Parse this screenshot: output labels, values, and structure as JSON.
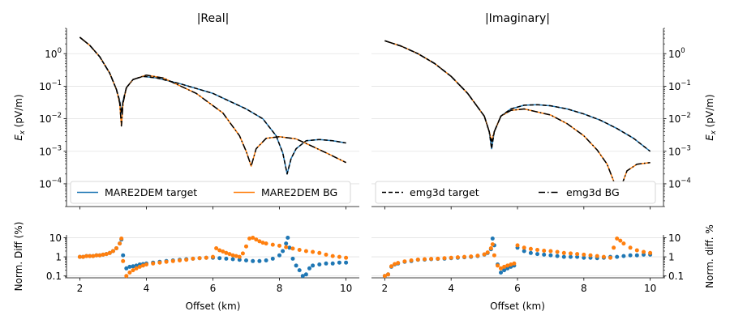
{
  "chart_data": [
    {
      "type": "line",
      "title": "|Real|",
      "ylabel": "E_x (pV/m)",
      "yscale": "log",
      "ylim": [
        2e-05,
        6
      ],
      "xlim": [
        1.6,
        10.4
      ],
      "yticks": [
        {
          "v": 1,
          "e": "0"
        },
        {
          "v": 0.1,
          "e": "−1"
        },
        {
          "v": 0.01,
          "e": "−2"
        },
        {
          "v": 0.001,
          "e": "−3"
        },
        {
          "v": 0.0001,
          "e": "−4"
        }
      ],
      "grid": true,
      "legend": {
        "position": "lower-left",
        "entries": [
          "MARE2DEM target",
          "MARE2DEM BG"
        ]
      },
      "series": [
        {
          "name": "MARE2DEM target",
          "color": "#1f77b4",
          "style": "solid",
          "x": [
            2.0,
            2.3,
            2.6,
            2.9,
            3.1,
            3.2,
            3.25,
            3.3,
            3.4,
            3.6,
            3.9,
            4.3,
            5.0,
            6.0,
            7.0,
            7.5,
            7.9,
            8.1,
            8.23,
            8.35,
            8.5,
            8.8,
            9.2,
            9.6,
            10.0
          ],
          "y": [
            3.2,
            1.8,
            0.8,
            0.25,
            0.08,
            0.035,
            0.015,
            0.035,
            0.09,
            0.16,
            0.2,
            0.18,
            0.12,
            0.06,
            0.02,
            0.01,
            0.003,
            0.0009,
            0.0002,
            0.0006,
            0.0012,
            0.0021,
            0.0023,
            0.0021,
            0.0018
          ]
        },
        {
          "name": "MARE2DEM BG",
          "color": "#ff7f0e",
          "style": "solid",
          "x": [
            2.0,
            2.3,
            2.6,
            2.9,
            3.1,
            3.2,
            3.25,
            3.3,
            3.4,
            3.6,
            4.0,
            4.5,
            5.5,
            6.3,
            6.8,
            7.0,
            7.1,
            7.15,
            7.3,
            7.6,
            8.0,
            8.5,
            9.0,
            9.5,
            10.0
          ],
          "y": [
            3.2,
            1.8,
            0.8,
            0.25,
            0.08,
            0.03,
            0.006,
            0.03,
            0.09,
            0.16,
            0.22,
            0.18,
            0.06,
            0.015,
            0.003,
            0.001,
            0.0005,
            0.00035,
            0.0012,
            0.0025,
            0.0028,
            0.0024,
            0.0014,
            0.0008,
            0.00045
          ]
        },
        {
          "name": "emg3d target",
          "color": "#000000",
          "style": "dashed",
          "x": [
            2.0,
            2.3,
            2.6,
            2.9,
            3.1,
            3.2,
            3.25,
            3.3,
            3.4,
            3.6,
            3.9,
            4.3,
            5.0,
            6.0,
            7.0,
            7.5,
            7.9,
            8.1,
            8.23,
            8.35,
            8.5,
            8.8,
            9.2,
            9.6,
            10.0
          ],
          "y": [
            3.2,
            1.8,
            0.8,
            0.25,
            0.08,
            0.035,
            0.015,
            0.035,
            0.09,
            0.16,
            0.2,
            0.18,
            0.12,
            0.06,
            0.02,
            0.01,
            0.003,
            0.0009,
            0.0002,
            0.0006,
            0.0012,
            0.0021,
            0.0023,
            0.0021,
            0.0018
          ]
        },
        {
          "name": "emg3d BG",
          "color": "#000000",
          "style": "dashdot",
          "x": [
            2.0,
            2.3,
            2.6,
            2.9,
            3.1,
            3.2,
            3.25,
            3.3,
            3.4,
            3.6,
            4.0,
            4.5,
            5.5,
            6.3,
            6.8,
            7.0,
            7.1,
            7.15,
            7.3,
            7.6,
            8.0,
            8.5,
            9.0,
            9.5,
            10.0
          ],
          "y": [
            3.2,
            1.8,
            0.8,
            0.25,
            0.08,
            0.03,
            0.006,
            0.03,
            0.09,
            0.16,
            0.22,
            0.18,
            0.06,
            0.015,
            0.003,
            0.001,
            0.0005,
            0.00035,
            0.0012,
            0.0025,
            0.0028,
            0.0024,
            0.0014,
            0.0008,
            0.00045
          ]
        }
      ]
    },
    {
      "type": "line",
      "title": "|Imaginary|",
      "ylabel": "E_x (pV/m)",
      "yscale": "log",
      "ylim": [
        2e-05,
        6
      ],
      "xlim": [
        1.6,
        10.4
      ],
      "yticks": [
        {
          "v": 1,
          "e": "0"
        },
        {
          "v": 0.1,
          "e": "−1"
        },
        {
          "v": 0.01,
          "e": "−2"
        },
        {
          "v": 0.001,
          "e": "−3"
        },
        {
          "v": 0.0001,
          "e": "−4"
        }
      ],
      "grid": true,
      "legend": {
        "position": "lower-left",
        "entries": [
          "emg3d target",
          "emg3d BG"
        ]
      },
      "series": [
        {
          "name": "MARE2DEM target",
          "color": "#1f77b4",
          "style": "solid",
          "x": [
            2.0,
            2.5,
            3.0,
            3.5,
            4.0,
            4.5,
            5.0,
            5.15,
            5.22,
            5.3,
            5.5,
            5.8,
            6.2,
            6.6,
            7.0,
            7.5,
            8.0,
            8.5,
            9.0,
            9.5,
            10.0
          ],
          "y": [
            2.5,
            1.7,
            1.0,
            0.5,
            0.2,
            0.06,
            0.012,
            0.004,
            0.0012,
            0.004,
            0.012,
            0.02,
            0.026,
            0.027,
            0.025,
            0.02,
            0.014,
            0.009,
            0.005,
            0.0025,
            0.001
          ]
        },
        {
          "name": "MARE2DEM BG",
          "color": "#ff7f0e",
          "style": "solid",
          "x": [
            2.0,
            2.5,
            3.0,
            3.5,
            4.0,
            4.5,
            5.0,
            5.15,
            5.22,
            5.3,
            5.5,
            5.8,
            6.2,
            7.0,
            7.5,
            8.0,
            8.4,
            8.7,
            8.9,
            9.0,
            9.05,
            9.1,
            9.3,
            9.6,
            10.0
          ],
          "y": [
            2.5,
            1.7,
            1.0,
            0.5,
            0.2,
            0.06,
            0.012,
            0.004,
            0.002,
            0.004,
            0.012,
            0.018,
            0.02,
            0.013,
            0.007,
            0.003,
            0.0011,
            0.0004,
            0.00012,
            4e-05,
            3e-05,
            7e-05,
            0.00025,
            0.0004,
            0.00045
          ]
        },
        {
          "name": "emg3d target",
          "color": "#000000",
          "style": "dashed",
          "x": [
            2.0,
            2.5,
            3.0,
            3.5,
            4.0,
            4.5,
            5.0,
            5.15,
            5.22,
            5.3,
            5.5,
            5.8,
            6.2,
            6.6,
            7.0,
            7.5,
            8.0,
            8.5,
            9.0,
            9.5,
            10.0
          ],
          "y": [
            2.5,
            1.7,
            1.0,
            0.5,
            0.2,
            0.06,
            0.012,
            0.004,
            0.0012,
            0.004,
            0.012,
            0.02,
            0.026,
            0.027,
            0.025,
            0.02,
            0.014,
            0.009,
            0.005,
            0.0025,
            0.001
          ]
        },
        {
          "name": "emg3d BG",
          "color": "#000000",
          "style": "dashdot",
          "x": [
            2.0,
            2.5,
            3.0,
            3.5,
            4.0,
            4.5,
            5.0,
            5.15,
            5.22,
            5.3,
            5.5,
            5.8,
            6.2,
            7.0,
            7.5,
            8.0,
            8.4,
            8.7,
            8.9,
            9.0,
            9.05,
            9.1,
            9.3,
            9.6,
            10.0
          ],
          "y": [
            2.5,
            1.7,
            1.0,
            0.5,
            0.2,
            0.06,
            0.012,
            0.004,
            0.002,
            0.004,
            0.012,
            0.018,
            0.02,
            0.013,
            0.007,
            0.003,
            0.0011,
            0.0004,
            0.00012,
            4e-05,
            3e-05,
            7e-05,
            0.00025,
            0.0004,
            0.00045
          ]
        }
      ]
    },
    {
      "type": "scatter",
      "ylabel": "Norm. Diff (%)",
      "xlabel": "Offset (km)",
      "yscale": "log",
      "ylim": [
        0.08,
        14
      ],
      "xlim": [
        1.6,
        10.4
      ],
      "xticks": [
        2,
        4,
        6,
        8,
        10
      ],
      "yticks": [
        {
          "v": 10,
          "t": "10"
        },
        {
          "v": 1,
          "t": "1"
        },
        {
          "v": 0.1,
          "t": "0.1"
        }
      ],
      "grid": true,
      "series": [
        {
          "name": "target",
          "color": "#1f77b4",
          "x": [
            2.0,
            2.1,
            2.2,
            2.3,
            2.4,
            2.5,
            2.6,
            2.7,
            2.8,
            2.9,
            3.0,
            3.1,
            3.2,
            3.25,
            3.3,
            3.4,
            3.5,
            3.6,
            3.7,
            3.8,
            3.9,
            4.0,
            4.2,
            4.4,
            4.6,
            4.8,
            5.0,
            5.2,
            5.4,
            5.6,
            5.8,
            6.0,
            6.2,
            6.4,
            6.6,
            6.8,
            7.0,
            7.2,
            7.4,
            7.6,
            7.8,
            8.0,
            8.1,
            8.2,
            8.25,
            8.3,
            8.4,
            8.5,
            8.6,
            8.7,
            8.8,
            8.9,
            9.0,
            9.2,
            9.4,
            9.6,
            9.8,
            10.0
          ],
          "y": [
            1.0,
            1.0,
            1.1,
            1.1,
            1.1,
            1.2,
            1.2,
            1.3,
            1.4,
            1.6,
            2.0,
            2.8,
            5.0,
            8.0,
            1.2,
            0.25,
            0.3,
            0.32,
            0.35,
            0.4,
            0.42,
            0.45,
            0.5,
            0.55,
            0.6,
            0.65,
            0.7,
            0.75,
            0.8,
            0.85,
            0.9,
            0.9,
            0.85,
            0.8,
            0.75,
            0.7,
            0.65,
            0.6,
            0.6,
            0.65,
            0.8,
            1.2,
            2.0,
            5.0,
            10.0,
            3.0,
            0.8,
            0.35,
            0.2,
            0.1,
            0.12,
            0.25,
            0.35,
            0.4,
            0.45,
            0.45,
            0.5,
            0.5
          ]
        },
        {
          "name": "BG",
          "color": "#ff7f0e",
          "x": [
            2.0,
            2.1,
            2.2,
            2.3,
            2.4,
            2.5,
            2.6,
            2.7,
            2.8,
            2.9,
            3.0,
            3.1,
            3.2,
            3.25,
            3.3,
            3.4,
            3.5,
            3.6,
            3.7,
            3.8,
            3.9,
            4.0,
            4.2,
            4.4,
            4.6,
            4.8,
            5.0,
            5.2,
            5.4,
            5.6,
            5.8,
            6.0,
            6.1,
            6.2,
            6.3,
            6.4,
            6.5,
            6.6,
            6.7,
            6.8,
            6.9,
            7.0,
            7.1,
            7.2,
            7.3,
            7.4,
            7.5,
            7.6,
            7.8,
            8.0,
            8.2,
            8.4,
            8.6,
            8.8,
            9.0,
            9.2,
            9.4,
            9.6,
            9.8,
            10.0
          ],
          "y": [
            1.0,
            1.0,
            1.1,
            1.1,
            1.1,
            1.2,
            1.2,
            1.3,
            1.4,
            1.6,
            2.0,
            2.8,
            5.0,
            9.0,
            0.6,
            0.1,
            0.15,
            0.2,
            0.25,
            0.3,
            0.35,
            0.4,
            0.45,
            0.5,
            0.55,
            0.6,
            0.65,
            0.7,
            0.8,
            0.85,
            0.9,
            1.0,
            2.8,
            2.2,
            1.9,
            1.6,
            1.4,
            1.2,
            1.1,
            1.0,
            1.5,
            3.5,
            9.0,
            10.0,
            8.0,
            6.5,
            5.5,
            5.0,
            4.3,
            3.8,
            3.2,
            2.7,
            2.3,
            2.0,
            1.8,
            1.6,
            1.3,
            1.1,
            1.0,
            0.9
          ]
        }
      ]
    },
    {
      "type": "scatter",
      "ylabel": "Norm. diff. %",
      "xlabel": "Offset (km)",
      "yscale": "log",
      "ylim": [
        0.08,
        14
      ],
      "xlim": [
        1.6,
        10.4
      ],
      "xticks": [
        2,
        4,
        6,
        8,
        10
      ],
      "yticks": [
        {
          "v": 10,
          "t": "10"
        },
        {
          "v": 1,
          "t": "1"
        },
        {
          "v": 0.1,
          "t": "0.1"
        }
      ],
      "grid": true,
      "series": [
        {
          "name": "target",
          "color": "#1f77b4",
          "x": [
            2.0,
            2.1,
            2.2,
            2.3,
            2.4,
            2.6,
            2.8,
            3.0,
            3.2,
            3.4,
            3.6,
            3.8,
            4.0,
            4.2,
            4.4,
            4.6,
            4.8,
            5.0,
            5.1,
            5.2,
            5.25,
            5.3,
            5.4,
            5.5,
            5.6,
            5.7,
            5.8,
            5.9,
            6.0,
            6.2,
            6.4,
            6.6,
            6.8,
            7.0,
            7.2,
            7.4,
            7.6,
            7.8,
            8.0,
            8.2,
            8.4,
            8.6,
            8.8,
            9.0,
            9.2,
            9.4,
            9.6,
            9.8,
            10.0
          ],
          "y": [
            0.1,
            0.12,
            0.3,
            0.4,
            0.45,
            0.55,
            0.6,
            0.7,
            0.72,
            0.75,
            0.78,
            0.8,
            0.85,
            0.9,
            0.95,
            1.0,
            1.1,
            1.3,
            1.6,
            2.5,
            9.0,
            4.0,
            0.4,
            0.15,
            0.2,
            0.25,
            0.3,
            0.35,
            3.0,
            2.0,
            1.6,
            1.4,
            1.3,
            1.2,
            1.1,
            1.0,
            1.0,
            1.0,
            0.9,
            0.9,
            0.85,
            0.9,
            1.0,
            1.0,
            1.1,
            1.2,
            1.2,
            1.3,
            1.3
          ]
        },
        {
          "name": "BG",
          "color": "#ff7f0e",
          "x": [
            2.0,
            2.1,
            2.2,
            2.3,
            2.4,
            2.6,
            2.8,
            3.0,
            3.2,
            3.4,
            3.6,
            3.8,
            4.0,
            4.2,
            4.4,
            4.6,
            4.8,
            5.0,
            5.1,
            5.2,
            5.25,
            5.3,
            5.4,
            5.5,
            5.6,
            5.7,
            5.8,
            5.9,
            6.0,
            6.2,
            6.4,
            6.6,
            6.8,
            7.0,
            7.2,
            7.4,
            7.6,
            7.8,
            8.0,
            8.2,
            8.4,
            8.6,
            8.8,
            8.9,
            9.0,
            9.1,
            9.2,
            9.4,
            9.6,
            9.8,
            10.0
          ],
          "y": [
            0.1,
            0.12,
            0.32,
            0.42,
            0.48,
            0.58,
            0.65,
            0.72,
            0.75,
            0.78,
            0.8,
            0.85,
            0.9,
            0.95,
            1.0,
            1.05,
            1.15,
            1.35,
            1.7,
            2.8,
            4.5,
            1.2,
            0.35,
            0.25,
            0.3,
            0.35,
            0.4,
            0.45,
            4.0,
            3.0,
            2.6,
            2.3,
            2.1,
            2.0,
            1.8,
            1.6,
            1.5,
            1.4,
            1.3,
            1.2,
            1.1,
            1.0,
            0.9,
            3.0,
            9.0,
            7.0,
            5.0,
            3.0,
            2.2,
            1.8,
            1.6
          ]
        }
      ]
    }
  ]
}
